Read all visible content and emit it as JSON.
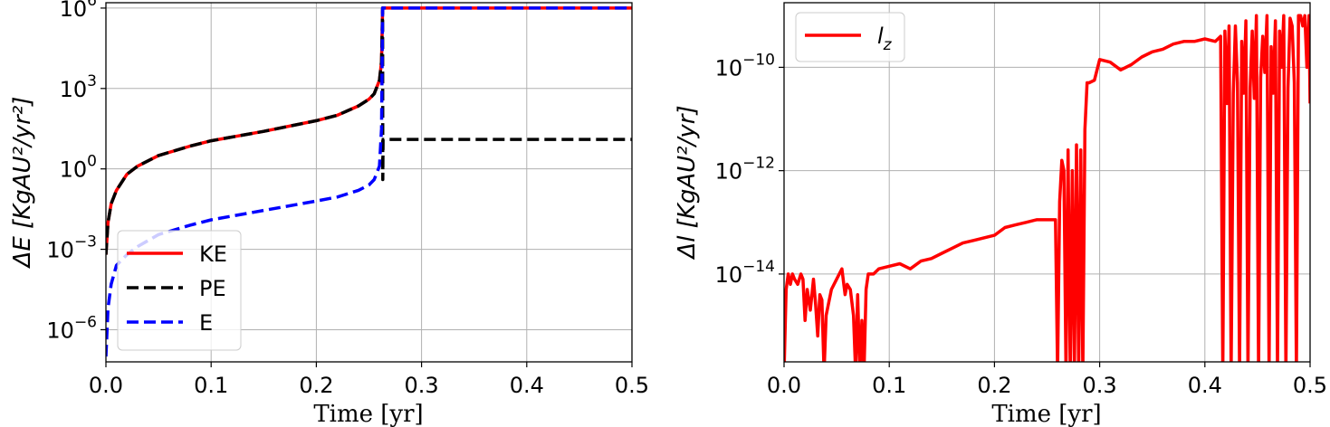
{
  "chart_data": [
    {
      "type": "line",
      "xlabel": "Time [yr]",
      "ylabel": "ΔE [KgAU²/yr²]",
      "ylabel_parts": {
        "delta_var": "ΔE",
        "units": "[KgAU²/yr²]"
      },
      "xlim": [
        0,
        0.5
      ],
      "ylim_log10": [
        -7.2,
        6.2
      ],
      "yscale": "log",
      "grid": true,
      "legend_position": "lower-left",
      "xticks": [
        "0.0",
        "0.1",
        "0.2",
        "0.3",
        "0.4",
        "0.5"
      ],
      "xtick_values": [
        0,
        0.1,
        0.2,
        0.3,
        0.4,
        0.5
      ],
      "yticks": [
        {
          "base": "10",
          "exp": "6",
          "log": 6
        },
        {
          "base": "10",
          "exp": "3",
          "log": 3
        },
        {
          "base": "10",
          "exp": "0",
          "log": 0
        },
        {
          "base": "10",
          "exp": "−3",
          "log": -3
        },
        {
          "base": "10",
          "exp": "−6",
          "log": -6
        }
      ],
      "series": [
        {
          "name": "KE",
          "color": "#ff0000",
          "style": "solid",
          "x": [
            0,
            0.002,
            0.005,
            0.01,
            0.02,
            0.03,
            0.05,
            0.08,
            0.1,
            0.15,
            0.2,
            0.22,
            0.24,
            0.25,
            0.255,
            0.26,
            0.262,
            0.263,
            0.264,
            0.3,
            0.4,
            0.5
          ],
          "log10_y": [
            -3.2,
            -2.0,
            -1.3,
            -0.8,
            -0.2,
            0.1,
            0.5,
            0.85,
            1.05,
            1.4,
            1.8,
            2.0,
            2.35,
            2.6,
            2.8,
            3.3,
            4.0,
            6.0,
            6.0,
            6.0,
            6.0,
            6.0
          ]
        },
        {
          "name": "PE",
          "color": "#000000",
          "style": "dashed",
          "x": [
            0,
            0.002,
            0.005,
            0.01,
            0.02,
            0.03,
            0.05,
            0.08,
            0.1,
            0.15,
            0.2,
            0.22,
            0.24,
            0.25,
            0.255,
            0.26,
            0.262,
            0.263,
            0.2632,
            0.2634,
            0.264,
            0.3,
            0.4,
            0.5
          ],
          "log10_y": [
            -3.2,
            -2.0,
            -1.3,
            -0.8,
            -0.2,
            0.1,
            0.5,
            0.85,
            1.05,
            1.4,
            1.8,
            2.0,
            2.35,
            2.6,
            2.8,
            3.3,
            4.0,
            6.0,
            -0.4,
            1.1,
            1.1,
            1.1,
            1.1,
            1.1
          ]
        },
        {
          "name": "E",
          "color": "#0000ff",
          "style": "dashed",
          "x": [
            0,
            0.002,
            0.005,
            0.01,
            0.02,
            0.03,
            0.05,
            0.08,
            0.1,
            0.15,
            0.2,
            0.22,
            0.24,
            0.25,
            0.255,
            0.26,
            0.262,
            0.263,
            0.264,
            0.3,
            0.4,
            0.5
          ],
          "log10_y": [
            -7.0,
            -5.2,
            -4.3,
            -3.6,
            -3.2,
            -2.9,
            -2.45,
            -2.1,
            -1.9,
            -1.55,
            -1.2,
            -1.05,
            -0.8,
            -0.6,
            -0.4,
            0.1,
            1.5,
            6.0,
            6.0,
            6.0,
            6.0,
            6.0
          ]
        }
      ]
    },
    {
      "type": "line",
      "xlabel": "Time [yr]",
      "ylabel": "Δl [KgAU²/yr]",
      "ylabel_parts": {
        "delta_var": "Δl",
        "units": "[KgAU²/yr]"
      },
      "xlim": [
        0,
        0.5
      ],
      "ylim_log10": [
        -15.7,
        -8.75
      ],
      "yscale": "log",
      "grid": true,
      "legend_position": "upper-left",
      "xticks": [
        "0.0",
        "0.1",
        "0.2",
        "0.3",
        "0.4",
        "0.5"
      ],
      "xtick_values": [
        0,
        0.1,
        0.2,
        0.3,
        0.4,
        0.5
      ],
      "yticks": [
        {
          "base": "10",
          "exp": "−10",
          "log": -10
        },
        {
          "base": "10",
          "exp": "−12",
          "log": -12
        },
        {
          "base": "10",
          "exp": "−14",
          "log": -14
        }
      ],
      "series": [
        {
          "name": "l_z",
          "legend_base": "l",
          "legend_sub": "z",
          "color": "#ff0000",
          "style": "solid",
          "x": [
            0,
            0.002,
            0.004,
            0.006,
            0.008,
            0.01,
            0.013,
            0.016,
            0.018,
            0.02,
            0.022,
            0.025,
            0.028,
            0.03,
            0.032,
            0.034,
            0.036,
            0.038,
            0.04,
            0.042,
            0.045,
            0.05,
            0.055,
            0.058,
            0.06,
            0.063,
            0.066,
            0.068,
            0.07,
            0.072,
            0.074,
            0.076,
            0.078,
            0.08,
            0.085,
            0.09,
            0.1,
            0.11,
            0.12,
            0.13,
            0.14,
            0.15,
            0.16,
            0.17,
            0.18,
            0.19,
            0.2,
            0.21,
            0.22,
            0.23,
            0.24,
            0.25,
            0.258,
            0.26,
            0.262,
            0.264,
            0.266,
            0.268,
            0.27,
            0.272,
            0.274,
            0.276,
            0.278,
            0.28,
            0.282,
            0.284,
            0.286,
            0.288,
            0.29,
            0.295,
            0.3,
            0.31,
            0.32,
            0.33,
            0.34,
            0.35,
            0.36,
            0.37,
            0.38,
            0.39,
            0.4,
            0.41,
            0.415,
            0.417,
            0.419,
            0.421,
            0.423,
            0.425,
            0.427,
            0.429,
            0.431,
            0.433,
            0.435,
            0.437,
            0.439,
            0.441,
            0.443,
            0.445,
            0.447,
            0.449,
            0.451,
            0.453,
            0.455,
            0.457,
            0.459,
            0.461,
            0.463,
            0.465,
            0.467,
            0.469,
            0.471,
            0.473,
            0.475,
            0.477,
            0.479,
            0.481,
            0.483,
            0.485,
            0.487,
            0.489,
            0.491,
            0.493,
            0.495,
            0.497,
            0.499,
            0.5
          ],
          "log10_y": [
            -15.9,
            -14.3,
            -14.0,
            -14.2,
            -14.0,
            -14.1,
            -14.2,
            -14.0,
            -14.1,
            -14.9,
            -14.3,
            -14.7,
            -14.1,
            -14.6,
            -15.2,
            -14.4,
            -14.5,
            -15.9,
            -14.8,
            -14.6,
            -14.3,
            -14.1,
            -13.9,
            -14.4,
            -14.2,
            -14.3,
            -14.8,
            -15.9,
            -14.4,
            -15.9,
            -14.9,
            -15.9,
            -14.3,
            -14.0,
            -14.0,
            -13.9,
            -13.85,
            -13.8,
            -13.9,
            -13.75,
            -13.7,
            -13.6,
            -13.5,
            -13.4,
            -13.35,
            -13.3,
            -13.25,
            -13.1,
            -13.05,
            -13.0,
            -12.95,
            -12.95,
            -12.95,
            -15.9,
            -12.6,
            -11.8,
            -12.0,
            -15.9,
            -11.6,
            -15.9,
            -12.0,
            -15.9,
            -11.5,
            -15.9,
            -11.6,
            -15.9,
            -11.2,
            -10.3,
            -10.3,
            -10.25,
            -9.85,
            -9.9,
            -10.05,
            -9.95,
            -9.8,
            -9.7,
            -9.65,
            -9.55,
            -9.5,
            -9.5,
            -9.45,
            -9.5,
            -9.4,
            -15.9,
            -9.3,
            -10.7,
            -9.2,
            -15.9,
            -10.5,
            -9.2,
            -10.3,
            -15.9,
            -9.5,
            -10.5,
            -9.1,
            -15.9,
            -10.4,
            -9.3,
            -10.6,
            -9.0,
            -15.9,
            -10.2,
            -9.4,
            -10.1,
            -9.0,
            -15.9,
            -9.6,
            -10.5,
            -9.1,
            -15.9,
            -9.3,
            -10.0,
            -9.0,
            -15.9,
            -10.4,
            -9.05,
            -9.2,
            -10.3,
            -15.9,
            -9.0,
            -9.0,
            -9.2,
            -9.0,
            -10.0,
            -9.0,
            -10.7
          ]
        }
      ]
    }
  ]
}
